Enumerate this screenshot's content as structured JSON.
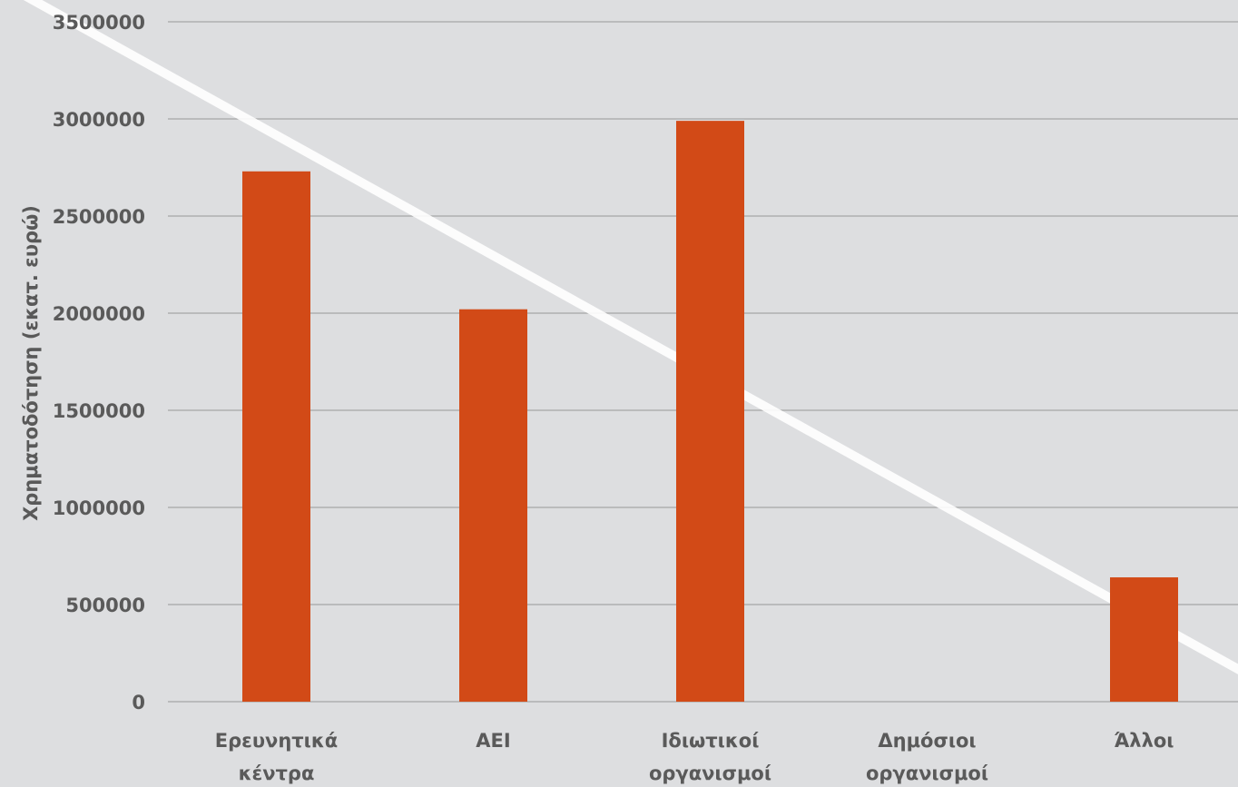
{
  "chart_data": {
    "type": "bar",
    "title": "",
    "xlabel": "",
    "ylabel": "Χρηματοδότηση (εκατ. ευρώ)",
    "ylim": [
      0,
      3500000
    ],
    "yticks": [
      0,
      500000,
      1000000,
      1500000,
      2000000,
      2500000,
      3000000,
      3500000
    ],
    "grid": true,
    "legend": "none",
    "categories": [
      [
        "Ερευνητικά",
        "κέντρα"
      ],
      [
        "ΑΕΙ"
      ],
      [
        "Ιδιωτικοί",
        "οργανισμοί"
      ],
      [
        "Δημόσιοι",
        "οργανισμοί"
      ],
      [
        "Άλλοι"
      ]
    ],
    "values": [
      2730000,
      2020000,
      2990000,
      0,
      640000
    ],
    "trendline": {
      "type": "linear",
      "color": "#ffffff"
    },
    "colors": {
      "bar": "#d24a17",
      "grid": "#a6a6a6",
      "background": "#dddee0",
      "text": "#5a5a5a"
    }
  }
}
